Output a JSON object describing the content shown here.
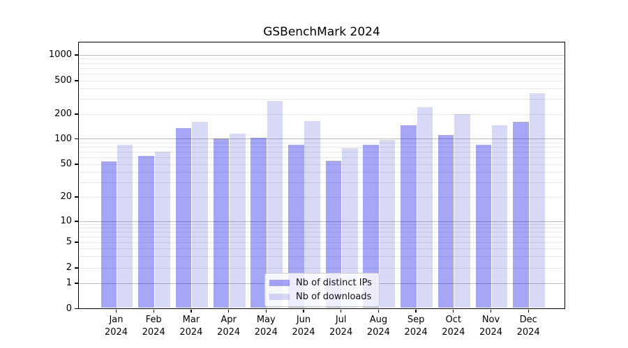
{
  "chart_data": {
    "type": "bar",
    "title": "GSBenchMark 2024",
    "xlabel": "",
    "ylabel": "",
    "x": {
      "categories": [
        "Jan",
        "Feb",
        "Mar",
        "Apr",
        "May",
        "Jun",
        "Jul",
        "Aug",
        "Sep",
        "Oct",
        "Nov",
        "Dec"
      ],
      "year_label": "2024"
    },
    "y": {
      "scale": "symlog (linear below 1, logarithmic above)",
      "range": [
        0,
        1000
      ],
      "ticks": [
        {
          "v": 0,
          "label": "0"
        },
        {
          "v": 1,
          "label": "1"
        },
        {
          "v": 2,
          "label": "2"
        },
        {
          "v": 5,
          "label": "5"
        },
        {
          "v": 10,
          "label": "10"
        },
        {
          "v": 20,
          "label": "20"
        },
        {
          "v": 50,
          "label": "50"
        },
        {
          "v": 100,
          "label": "100"
        },
        {
          "v": 200,
          "label": "200"
        },
        {
          "v": 500,
          "label": "500"
        },
        {
          "v": 1000,
          "label": "1000"
        }
      ],
      "major_grid_values": [
        1,
        10,
        100,
        1000
      ],
      "minor_grid_values": [
        2,
        3,
        4,
        5,
        6,
        7,
        8,
        9,
        20,
        30,
        40,
        50,
        60,
        70,
        80,
        90,
        200,
        300,
        400,
        500,
        600,
        700,
        800,
        900
      ]
    },
    "series": [
      {
        "name": "Nb of distinct IPs",
        "color": "rgba(0,0,230,0.35)",
        "values": [
          54,
          62,
          135,
          100,
          102,
          85,
          55,
          85,
          145,
          110,
          85,
          160
        ]
      },
      {
        "name": "Nb of downloads",
        "color": "rgba(25,25,210,0.17)",
        "values": [
          84,
          70,
          160,
          116,
          285,
          165,
          77,
          96,
          240,
          200,
          145,
          350
        ]
      }
    ],
    "legend": {
      "position": "lower center",
      "entries": [
        "Nb of distinct IPs",
        "Nb of downloads"
      ]
    },
    "grid": true
  },
  "colors": {
    "background": "#ffffff",
    "spine": "#000000",
    "major_grid": "#bdbdbd",
    "minor_grid": "#e6e6e6",
    "bar_dark": "rgba(0,0,230,0.35)",
    "bar_light": "rgba(25,25,210,0.17)",
    "legend_border": "#cccccc"
  }
}
